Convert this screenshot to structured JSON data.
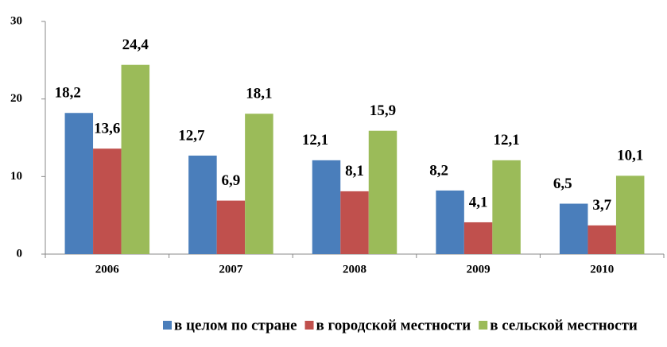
{
  "chart_data": {
    "type": "bar",
    "categories": [
      "2006",
      "2007",
      "2008",
      "2009",
      "2010"
    ],
    "series": [
      {
        "name": "в целом по стране",
        "color": "#4a7ebb",
        "values": [
          18.2,
          12.7,
          12.1,
          8.2,
          6.5
        ],
        "value_labels": [
          "18,2",
          "12,7",
          "12,1",
          "8,2",
          "6,5"
        ]
      },
      {
        "name": "в городской местности",
        "color": "#c0504d",
        "values": [
          13.6,
          6.9,
          8.1,
          4.1,
          3.7
        ],
        "value_labels": [
          "13,6",
          "6,9",
          "8,1",
          "4,1",
          "3,7"
        ]
      },
      {
        "name": "в сельской местности",
        "color": "#9bbb59",
        "values": [
          24.4,
          18.1,
          15.9,
          12.1,
          10.1
        ],
        "value_labels": [
          "24,4",
          "18,1",
          "15,9",
          "12,1",
          "10,1"
        ]
      }
    ],
    "ylim": [
      0,
      30
    ],
    "yticks": [
      0,
      10,
      20,
      30
    ],
    "grid": false,
    "legend": "bottom"
  }
}
